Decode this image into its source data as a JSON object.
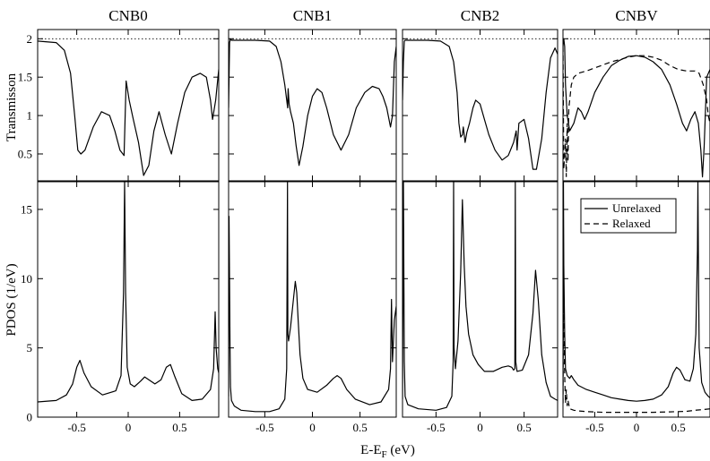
{
  "chart_data": {
    "type": "line",
    "columns": [
      "CNB0",
      "CNB1",
      "CNB2",
      "CNBV"
    ],
    "xlabel": "E-E",
    "xlabel_sub": "F",
    "xlabel_unit": " (eV)",
    "top_ylabel": "Transmisson",
    "bottom_ylabel": "PDOS (1/eV)",
    "xlim": [
      -0.88,
      0.88
    ],
    "top_ylim": [
      0.15,
      2.12
    ],
    "bottom_ylim": [
      0,
      17
    ],
    "x_ticks": [
      -0.5,
      0,
      0.5
    ],
    "x_tick_labels": [
      "-0.5",
      "0",
      "0.5"
    ],
    "top_y_ticks": [
      0.5,
      1,
      1.5,
      2
    ],
    "top_y_tick_labels": [
      "0.5",
      "1",
      "1.5",
      "2"
    ],
    "bottom_y_ticks": [
      0,
      5,
      10,
      15
    ],
    "bottom_y_tick_labels": [
      "0",
      "5",
      "10",
      "15"
    ],
    "reference_line_y": 2,
    "legend": {
      "position": "top-right of CNBV PDOS panel",
      "entries": [
        {
          "label": "Unrelaxed",
          "style": "solid"
        },
        {
          "label": "Relaxed",
          "style": "dashed"
        }
      ]
    },
    "panels": [
      {
        "column": "CNB0",
        "transmission": {
          "series": [
            {
              "name": "Unrelaxed",
              "style": "solid",
              "x": [
                -0.88,
                -0.7,
                -0.62,
                -0.56,
                -0.52,
                -0.49,
                -0.46,
                -0.42,
                -0.34,
                -0.26,
                -0.18,
                -0.13,
                -0.08,
                -0.04,
                -0.02,
                0.01,
                0.05,
                0.1,
                0.15,
                0.2,
                0.25,
                0.3,
                0.36,
                0.42,
                0.48,
                0.55,
                0.62,
                0.7,
                0.76,
                0.8,
                0.82,
                0.85,
                0.88
              ],
              "y": [
                1.97,
                1.95,
                1.85,
                1.55,
                1.0,
                0.55,
                0.5,
                0.55,
                0.85,
                1.05,
                1.0,
                0.8,
                0.55,
                0.48,
                1.45,
                1.2,
                0.95,
                0.65,
                0.22,
                0.35,
                0.8,
                1.05,
                0.75,
                0.5,
                0.9,
                1.3,
                1.5,
                1.55,
                1.5,
                1.2,
                0.95,
                1.2,
                1.6
              ]
            }
          ]
        },
        "pdos": {
          "series": [
            {
              "name": "Unrelaxed",
              "style": "solid",
              "x": [
                -0.88,
                -0.7,
                -0.6,
                -0.54,
                -0.5,
                -0.47,
                -0.43,
                -0.36,
                -0.25,
                -0.12,
                -0.07,
                -0.045,
                -0.035,
                -0.025,
                -0.01,
                0.02,
                0.06,
                0.12,
                0.16,
                0.2,
                0.26,
                0.32,
                0.37,
                0.41,
                0.45,
                0.52,
                0.62,
                0.72,
                0.8,
                0.83,
                0.845,
                0.855,
                0.87,
                0.88
              ],
              "y": [
                1.1,
                1.2,
                1.6,
                2.4,
                3.6,
                4.1,
                3.2,
                2.2,
                1.6,
                1.9,
                3.0,
                9.0,
                17.0,
                9.0,
                3.6,
                2.4,
                2.2,
                2.6,
                2.9,
                2.7,
                2.4,
                2.7,
                3.6,
                3.8,
                3.0,
                1.7,
                1.2,
                1.3,
                2.0,
                3.5,
                7.6,
                5.0,
                3.5,
                3.2
              ]
            }
          ]
        }
      },
      {
        "column": "CNB1",
        "transmission": {
          "series": [
            {
              "name": "Unrelaxed",
              "style": "solid",
              "x": [
                -0.88,
                -0.87,
                -0.86,
                -0.85,
                -0.8,
                -0.6,
                -0.45,
                -0.38,
                -0.33,
                -0.29,
                -0.26,
                -0.255,
                -0.245,
                -0.23,
                -0.2,
                -0.17,
                -0.14,
                -0.1,
                -0.05,
                0.0,
                0.05,
                0.1,
                0.15,
                0.22,
                0.3,
                0.38,
                0.46,
                0.55,
                0.63,
                0.7,
                0.74,
                0.78,
                0.82,
                0.84,
                0.86,
                0.88
              ],
              "y": [
                1.1,
                1.95,
                2.0,
                1.98,
                1.98,
                1.98,
                1.97,
                1.9,
                1.7,
                1.4,
                1.1,
                1.35,
                1.15,
                1.05,
                0.9,
                0.6,
                0.35,
                0.6,
                1.0,
                1.25,
                1.35,
                1.3,
                1.1,
                0.75,
                0.55,
                0.75,
                1.1,
                1.3,
                1.38,
                1.35,
                1.25,
                1.1,
                0.85,
                1.0,
                1.7,
                1.9
              ]
            }
          ]
        },
        "pdos": {
          "series": [
            {
              "name": "Unrelaxed",
              "style": "solid",
              "x": [
                -0.88,
                -0.875,
                -0.865,
                -0.86,
                -0.85,
                -0.82,
                -0.75,
                -0.6,
                -0.45,
                -0.35,
                -0.29,
                -0.27,
                -0.262,
                -0.258,
                -0.25,
                -0.23,
                -0.2,
                -0.18,
                -0.165,
                -0.15,
                -0.13,
                -0.1,
                -0.05,
                0.05,
                0.15,
                0.22,
                0.26,
                0.3,
                0.36,
                0.45,
                0.6,
                0.72,
                0.8,
                0.82,
                0.83,
                0.84,
                0.86,
                0.88
              ],
              "y": [
                1.5,
                14.5,
                5.0,
                2.2,
                1.2,
                0.8,
                0.5,
                0.4,
                0.4,
                0.6,
                1.3,
                3.5,
                17.0,
                6.0,
                5.5,
                6.5,
                8.5,
                9.8,
                9.0,
                7.0,
                4.5,
                2.8,
                2.0,
                1.8,
                2.3,
                2.8,
                3.0,
                2.8,
                2.0,
                1.3,
                0.9,
                1.1,
                2.0,
                3.5,
                8.5,
                4.0,
                7.0,
                8.0
              ]
            }
          ]
        }
      },
      {
        "column": "CNB2",
        "transmission": {
          "series": [
            {
              "name": "Unrelaxed",
              "style": "solid",
              "x": [
                -0.88,
                -0.87,
                -0.86,
                -0.85,
                -0.8,
                -0.6,
                -0.45,
                -0.35,
                -0.3,
                -0.26,
                -0.24,
                -0.22,
                -0.2,
                -0.19,
                -0.17,
                -0.15,
                -0.12,
                -0.08,
                -0.05,
                0.0,
                0.05,
                0.1,
                0.17,
                0.25,
                0.32,
                0.38,
                0.41,
                0.42,
                0.44,
                0.5,
                0.55,
                0.6,
                0.64,
                0.7,
                0.75,
                0.8,
                0.85,
                0.88
              ],
              "y": [
                1.2,
                1.7,
                1.97,
                1.98,
                1.98,
                1.98,
                1.97,
                1.9,
                1.7,
                1.3,
                0.9,
                0.72,
                0.75,
                0.85,
                0.65,
                0.78,
                0.9,
                1.1,
                1.2,
                1.15,
                0.95,
                0.75,
                0.55,
                0.42,
                0.48,
                0.65,
                0.8,
                0.55,
                0.9,
                0.95,
                0.7,
                0.3,
                0.3,
                0.7,
                1.3,
                1.75,
                1.88,
                1.8
              ]
            }
          ]
        },
        "pdos": {
          "series": [
            {
              "name": "Unrelaxed",
              "style": "solid",
              "x": [
                -0.88,
                -0.87,
                -0.86,
                -0.85,
                -0.82,
                -0.7,
                -0.5,
                -0.38,
                -0.32,
                -0.305,
                -0.3,
                -0.295,
                -0.28,
                -0.25,
                -0.22,
                -0.2,
                -0.18,
                -0.16,
                -0.13,
                -0.08,
                -0.02,
                0.05,
                0.15,
                0.25,
                0.32,
                0.36,
                0.38,
                0.395,
                0.4,
                0.405,
                0.42,
                0.48,
                0.55,
                0.6,
                0.63,
                0.66,
                0.7,
                0.75,
                0.8,
                0.85,
                0.88
              ],
              "y": [
                1.3,
                17.0,
                4.0,
                1.5,
                0.9,
                0.6,
                0.5,
                0.7,
                1.5,
                4.0,
                17.0,
                5.0,
                3.5,
                5.5,
                10.5,
                15.7,
                11.0,
                8.0,
                6.0,
                4.5,
                3.8,
                3.3,
                3.3,
                3.6,
                3.7,
                3.6,
                3.4,
                3.5,
                17.0,
                4.0,
                3.3,
                3.4,
                4.5,
                7.5,
                10.6,
                8.5,
                4.5,
                2.5,
                1.5,
                1.3,
                1.2
              ]
            }
          ]
        }
      },
      {
        "column": "CNBV",
        "transmission": {
          "series": [
            {
              "name": "Unrelaxed",
              "style": "solid",
              "x": [
                -0.88,
                -0.87,
                -0.86,
                -0.85,
                -0.83,
                -0.8,
                -0.75,
                -0.7,
                -0.66,
                -0.62,
                -0.58,
                -0.5,
                -0.4,
                -0.3,
                -0.2,
                -0.1,
                0.0,
                0.1,
                0.2,
                0.3,
                0.4,
                0.48,
                0.55,
                0.6,
                0.65,
                0.7,
                0.74,
                0.77,
                0.79,
                0.81,
                0.84,
                0.88
              ],
              "y": [
                1.9,
                2.0,
                1.9,
                1.4,
                1.0,
                0.8,
                0.9,
                1.1,
                1.05,
                0.95,
                1.05,
                1.3,
                1.5,
                1.65,
                1.72,
                1.77,
                1.78,
                1.76,
                1.7,
                1.6,
                1.4,
                1.15,
                0.9,
                0.8,
                0.95,
                1.05,
                0.9,
                0.55,
                0.2,
                0.6,
                1.5,
                1.6
              ]
            },
            {
              "name": "Relaxed",
              "style": "dashed",
              "x": [
                -0.88,
                -0.87,
                -0.86,
                -0.85,
                -0.84,
                -0.83,
                -0.82,
                -0.81,
                -0.8,
                -0.78,
                -0.75,
                -0.7,
                -0.6,
                -0.5,
                -0.4,
                -0.3,
                -0.2,
                -0.1,
                0.0,
                0.1,
                0.2,
                0.3,
                0.4,
                0.5,
                0.6,
                0.7,
                0.75,
                0.8,
                0.84,
                0.86,
                0.88
              ],
              "y": [
                1.9,
                0.3,
                0.5,
                0.7,
                0.2,
                0.9,
                0.4,
                1.1,
                1.2,
                1.4,
                1.5,
                1.55,
                1.58,
                1.62,
                1.66,
                1.7,
                1.73,
                1.76,
                1.78,
                1.78,
                1.76,
                1.72,
                1.65,
                1.6,
                1.58,
                1.58,
                1.55,
                1.4,
                1.2,
                1.0,
                0.9
              ]
            }
          ]
        },
        "pdos": {
          "series": [
            {
              "name": "Unrelaxed",
              "style": "solid",
              "x": [
                -0.88,
                -0.875,
                -0.87,
                -0.86,
                -0.85,
                -0.83,
                -0.8,
                -0.78,
                -0.75,
                -0.7,
                -0.6,
                -0.5,
                -0.4,
                -0.3,
                -0.2,
                -0.1,
                0.0,
                0.1,
                0.2,
                0.3,
                0.38,
                0.44,
                0.48,
                0.52,
                0.58,
                0.64,
                0.68,
                0.71,
                0.73,
                0.735,
                0.74,
                0.75,
                0.78,
                0.82,
                0.86,
                0.88
              ],
              "y": [
                1.0,
                17.0,
                11.0,
                6.0,
                3.5,
                3.0,
                2.8,
                3.0,
                2.7,
                2.3,
                2.0,
                1.8,
                1.6,
                1.4,
                1.3,
                1.2,
                1.15,
                1.2,
                1.3,
                1.6,
                2.2,
                3.2,
                3.6,
                3.4,
                2.7,
                2.6,
                3.5,
                6.0,
                12.0,
                17.0,
                12.0,
                5.0,
                2.5,
                1.8,
                1.5,
                1.4
              ]
            },
            {
              "name": "Relaxed",
              "style": "dashed",
              "x": [
                -0.88,
                -0.875,
                -0.87,
                -0.86,
                -0.85,
                -0.84,
                -0.83,
                -0.82,
                -0.8,
                -0.75,
                -0.7,
                -0.6,
                -0.4,
                -0.2,
                0.0,
                0.2,
                0.4,
                0.6,
                0.7,
                0.8,
                0.88
              ],
              "y": [
                1.0,
                11.0,
                7.0,
                3.0,
                1.0,
                2.0,
                0.8,
                1.2,
                0.6,
                0.5,
                0.45,
                0.4,
                0.35,
                0.35,
                0.35,
                0.35,
                0.38,
                0.42,
                0.5,
                0.55,
                0.6
              ]
            }
          ]
        }
      }
    ]
  }
}
